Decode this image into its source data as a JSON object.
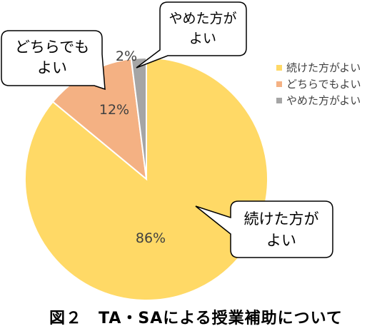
{
  "chart_data": {
    "type": "pie",
    "categories": [
      "続けた方がよい",
      "どちらでもよい",
      "やめた方がよい"
    ],
    "values": [
      86,
      12,
      2
    ],
    "value_labels": [
      "86%",
      "12%",
      "2%"
    ],
    "callouts": [
      {
        "lines": [
          "続けた方が",
          "よい"
        ]
      },
      {
        "lines": [
          "どちらでも",
          "よい"
        ]
      },
      {
        "lines": [
          "やめた方が",
          "よい"
        ]
      }
    ],
    "colors": [
      "#FFD966",
      "#F4B183",
      "#A5A5A5"
    ],
    "legend": {
      "position": "right",
      "entries": [
        "続けた方がよい",
        "どちらでもよい",
        "やめた方がよい"
      ]
    }
  },
  "caption": "図２　TA・SAによる授業補助について"
}
